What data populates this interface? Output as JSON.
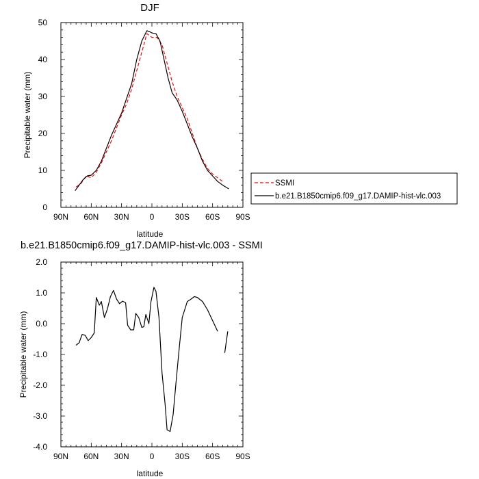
{
  "chart_data": [
    {
      "type": "line",
      "title": "DJF",
      "xlabel": "latitude",
      "ylabel": "Precipitable water (mm)",
      "xlim": [
        90,
        -90
      ],
      "ylim": [
        0,
        50
      ],
      "x_ticks": [
        {
          "value": 90,
          "label": "90N"
        },
        {
          "value": 60,
          "label": "60N"
        },
        {
          "value": 30,
          "label": "30N"
        },
        {
          "value": 0,
          "label": "0"
        },
        {
          "value": -30,
          "label": "30S"
        },
        {
          "value": -60,
          "label": "60S"
        },
        {
          "value": -90,
          "label": "90S"
        }
      ],
      "y_ticks": [
        {
          "value": 0,
          "label": "0"
        },
        {
          "value": 10,
          "label": "10"
        },
        {
          "value": 20,
          "label": "20"
        },
        {
          "value": 30,
          "label": "30"
        },
        {
          "value": 40,
          "label": "40"
        },
        {
          "value": 50,
          "label": "50"
        }
      ],
      "legend_position": "right",
      "series": [
        {
          "name": "SSMI",
          "color": "#ff0000",
          "dash": "dashed",
          "points": [
            [
              75,
              5.5
            ],
            [
              70,
              6.5
            ],
            [
              65,
              8.5
            ],
            [
              60,
              8.0
            ],
            [
              55,
              9.5
            ],
            [
              50,
              12
            ],
            [
              45,
              15
            ],
            [
              40,
              18
            ],
            [
              35,
              21.5
            ],
            [
              30,
              25
            ],
            [
              25,
              28
            ],
            [
              20,
              32
            ],
            [
              15,
              37
            ],
            [
              10,
              42
            ],
            [
              5,
              47
            ],
            [
              0,
              46
            ],
            [
              -5,
              46
            ],
            [
              -10,
              44
            ],
            [
              -15,
              39
            ],
            [
              -20,
              34
            ],
            [
              -25,
              30
            ],
            [
              -30,
              27
            ],
            [
              -35,
              24
            ],
            [
              -40,
              20
            ],
            [
              -45,
              16
            ],
            [
              -50,
              13
            ],
            [
              -55,
              10.5
            ],
            [
              -60,
              9
            ],
            [
              -65,
              8
            ],
            [
              -70,
              7
            ]
          ]
        },
        {
          "name": "b.e21.B1850cmip6.f09_g17.DAMIP-hist-vlc.003",
          "color": "#000000",
          "dash": "solid",
          "points": [
            [
              76,
              4.5
            ],
            [
              72,
              6.0
            ],
            [
              68,
              7.5
            ],
            [
              64,
              8.5
            ],
            [
              60,
              8.7
            ],
            [
              55,
              10
            ],
            [
              50,
              12.5
            ],
            [
              45,
              16
            ],
            [
              40,
              19.5
            ],
            [
              35,
              22.5
            ],
            [
              30,
              25.5
            ],
            [
              25,
              29.5
            ],
            [
              20,
              33.5
            ],
            [
              15,
              40
            ],
            [
              10,
              45
            ],
            [
              5,
              47.8
            ],
            [
              2,
              47.5
            ],
            [
              0,
              47.2
            ],
            [
              -4,
              47
            ],
            [
              -8,
              45
            ],
            [
              -12,
              40
            ],
            [
              -16,
              35
            ],
            [
              -20,
              31
            ],
            [
              -25,
              29
            ],
            [
              -30,
              26
            ],
            [
              -35,
              22.5
            ],
            [
              -40,
              19
            ],
            [
              -45,
              16
            ],
            [
              -50,
              12.5
            ],
            [
              -55,
              10
            ],
            [
              -60,
              8.5
            ],
            [
              -65,
              7.0
            ],
            [
              -70,
              6.0
            ],
            [
              -76,
              5.0
            ]
          ]
        }
      ]
    },
    {
      "type": "line",
      "title": "b.e21.B1850cmip6.f09_g17.DAMIP-hist-vlc.003 - SSMI",
      "xlabel": "latitude",
      "ylabel": "Precipitable water (mm)",
      "xlim": [
        90,
        -90
      ],
      "ylim": [
        -4.0,
        2.0
      ],
      "x_ticks": [
        {
          "value": 90,
          "label": "90N"
        },
        {
          "value": 60,
          "label": "60N"
        },
        {
          "value": 30,
          "label": "30N"
        },
        {
          "value": 0,
          "label": "0"
        },
        {
          "value": -30,
          "label": "30S"
        },
        {
          "value": -60,
          "label": "60S"
        },
        {
          "value": -90,
          "label": "90S"
        }
      ],
      "y_ticks": [
        {
          "value": 2.0,
          "label": "2.0"
        },
        {
          "value": 1.0,
          "label": "1.0"
        },
        {
          "value": 0.0,
          "label": "0.0"
        },
        {
          "value": -1.0,
          "label": "-1.0"
        },
        {
          "value": -2.0,
          "label": "-2.0"
        },
        {
          "value": -3.0,
          "label": "-3.0"
        },
        {
          "value": -4.0,
          "label": "-4.0"
        }
      ],
      "series": [
        {
          "name": "",
          "color": "#000000",
          "dash": "solid",
          "segments": [
            [
              [
                75,
                -0.7
              ],
              [
                72,
                -0.62
              ],
              [
                69,
                -0.35
              ],
              [
                66,
                -0.38
              ],
              [
                63,
                -0.55
              ],
              [
                60,
                -0.45
              ],
              [
                57,
                -0.3
              ],
              [
                55,
                0.85
              ],
              [
                52,
                0.6
              ],
              [
                50,
                0.72
              ],
              [
                47,
                0.2
              ],
              [
                44,
                0.48
              ],
              [
                41,
                0.88
              ],
              [
                38,
                1.08
              ],
              [
                35,
                0.8
              ],
              [
                32,
                0.65
              ],
              [
                29,
                0.73
              ],
              [
                26,
                0.68
              ],
              [
                24,
                -0.05
              ],
              [
                21,
                -0.2
              ],
              [
                18,
                -0.2
              ],
              [
                16,
                0.33
              ],
              [
                13,
                0.2
              ],
              [
                10,
                -0.12
              ],
              [
                8,
                -0.1
              ],
              [
                6,
                0.3
              ],
              [
                3,
                0.0
              ],
              [
                1,
                0.7
              ],
              [
                -2,
                1.18
              ],
              [
                -4,
                1.05
              ],
              [
                -7,
                0.2
              ],
              [
                -10,
                -1.6
              ],
              [
                -13,
                -2.6
              ],
              [
                -15,
                -3.45
              ],
              [
                -18,
                -3.5
              ],
              [
                -21,
                -2.95
              ],
              [
                -24,
                -1.85
              ],
              [
                -27,
                -0.8
              ],
              [
                -30,
                0.2
              ],
              [
                -35,
                0.72
              ],
              [
                -38,
                0.78
              ],
              [
                -42,
                0.88
              ],
              [
                -45,
                0.85
              ],
              [
                -50,
                0.72
              ],
              [
                -55,
                0.45
              ],
              [
                -60,
                0.1
              ],
              [
                -65,
                -0.25
              ]
            ],
            [
              [
                -72,
                -0.95
              ],
              [
                -75,
                -0.25
              ]
            ]
          ]
        }
      ]
    }
  ]
}
